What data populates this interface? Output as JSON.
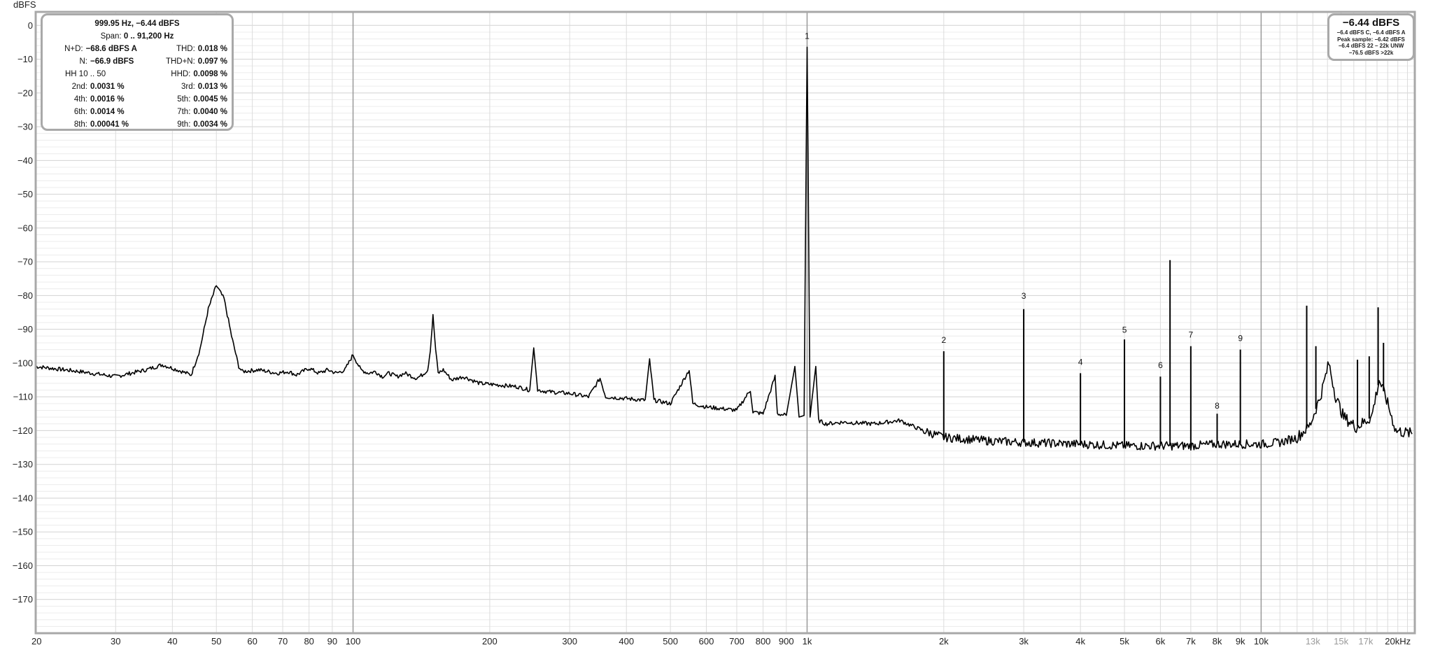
{
  "stats": {
    "header": "999.95 Hz, −6.44 dBFS",
    "span_label": "Span:",
    "span_value": "0 .. 91,200 Hz",
    "rows": [
      {
        "l1": "N+D:",
        "v1": "−68.6 dBFS A",
        "l2": "THD:",
        "v2": "0.018 %"
      },
      {
        "l1": "N:",
        "v1": "−66.9 dBFS",
        "l2": "THD+N:",
        "v2": "0.097 %"
      },
      {
        "l1": "HH 10 .. 50",
        "v1": "",
        "l2": "HHD:",
        "v2": "0.0098 %"
      },
      {
        "l1": "2nd:",
        "v1": "0.0031 %",
        "l2": "3rd:",
        "v2": "0.013 %"
      },
      {
        "l1": "4th:",
        "v1": "0.0016 %",
        "l2": "5th:",
        "v2": "0.0045 %"
      },
      {
        "l1": "6th:",
        "v1": "0.0014 %",
        "l2": "7th:",
        "v2": "0.0040 %"
      },
      {
        "l1": "8th:",
        "v1": "0.00041 %",
        "l2": "9th:",
        "v2": "0.0034 %"
      }
    ]
  },
  "level": {
    "main": "−6.44 dBFS",
    "lines": [
      "−6.4 dBFS C, −6.4 dBFS A",
      "Peak sample: −6.42 dBFS",
      "−6.4 dBFS 22 – 22k UNW",
      "−76.5 dBFS >22k"
    ]
  },
  "colors": {
    "trace": "#000000",
    "grid_minor": "#dddddd",
    "grid_decade": "#9a9a9a",
    "frame": "#a8a8a8"
  },
  "chart_data": {
    "type": "line",
    "ylabel": "dBFS",
    "xscale": "log",
    "xlim": [
      20,
      21800
    ],
    "ylim": [
      -180,
      4
    ],
    "y_ticks": [
      0,
      -10,
      -20,
      -30,
      -40,
      -50,
      -60,
      -70,
      -80,
      -90,
      -100,
      -110,
      -120,
      -130,
      -140,
      -150,
      -160,
      -170
    ],
    "y_tick_labels": [
      "0",
      "−10",
      "−20",
      "−30",
      "−40",
      "−50",
      "−60",
      "−70",
      "−80",
      "−90",
      "−100",
      "−110",
      "−120",
      "−130",
      "−140",
      "−150",
      "−160",
      "−170"
    ],
    "x_ticks": [
      {
        "v": 20,
        "label": "20"
      },
      {
        "v": 30,
        "label": "30"
      },
      {
        "v": 40,
        "label": "40"
      },
      {
        "v": 50,
        "label": "50"
      },
      {
        "v": 60,
        "label": "60"
      },
      {
        "v": 70,
        "label": "70"
      },
      {
        "v": 80,
        "label": "80"
      },
      {
        "v": 90,
        "label": "90"
      },
      {
        "v": 100,
        "label": "100"
      },
      {
        "v": 200,
        "label": "200"
      },
      {
        "v": 300,
        "label": "300"
      },
      {
        "v": 400,
        "label": "400"
      },
      {
        "v": 500,
        "label": "500"
      },
      {
        "v": 600,
        "label": "600"
      },
      {
        "v": 700,
        "label": "700"
      },
      {
        "v": 800,
        "label": "800"
      },
      {
        "v": 900,
        "label": "900"
      },
      {
        "v": 1000,
        "label": "1k"
      },
      {
        "v": 2000,
        "label": "2k"
      },
      {
        "v": 3000,
        "label": "3k"
      },
      {
        "v": 4000,
        "label": "4k"
      },
      {
        "v": 5000,
        "label": "5k"
      },
      {
        "v": 6000,
        "label": "6k"
      },
      {
        "v": 7000,
        "label": "7k"
      },
      {
        "v": 8000,
        "label": "8k"
      },
      {
        "v": 9000,
        "label": "9k"
      },
      {
        "v": 10000,
        "label": "10k"
      },
      {
        "v": 13000,
        "label": "13k",
        "dim": true
      },
      {
        "v": 15000,
        "label": "15k",
        "dim": true
      },
      {
        "v": 17000,
        "label": "17k",
        "dim": true
      },
      {
        "v": 20000,
        "label": "20kHz"
      }
    ],
    "series": [
      {
        "points": [
          [
            20,
            -101
          ],
          [
            25,
            -102.5
          ],
          [
            30,
            -104
          ],
          [
            35,
            -102
          ],
          [
            38,
            -100.5
          ],
          [
            41,
            -102
          ],
          [
            44,
            -103.5
          ],
          [
            46,
            -96
          ],
          [
            48,
            -84
          ],
          [
            50,
            -77
          ],
          [
            52,
            -81
          ],
          [
            54,
            -92
          ],
          [
            56,
            -101
          ],
          [
            57,
            -102.5
          ],
          [
            62,
            -102
          ],
          [
            68,
            -103
          ],
          [
            72,
            -102.5
          ],
          [
            75,
            -103.5
          ],
          [
            80,
            -101.5
          ],
          [
            84,
            -103
          ],
          [
            88,
            -102
          ],
          [
            92,
            -103
          ],
          [
            96,
            -102
          ],
          [
            100,
            -97.5
          ],
          [
            104,
            -102
          ],
          [
            108,
            -103
          ],
          [
            112,
            -102.5
          ],
          [
            116,
            -104
          ],
          [
            120,
            -103
          ],
          [
            125,
            -104
          ],
          [
            130,
            -103
          ],
          [
            138,
            -104.5
          ],
          [
            142,
            -103.5
          ],
          [
            146,
            -102
          ],
          [
            148,
            -96
          ],
          [
            150,
            -86
          ],
          [
            152,
            -96
          ],
          [
            154,
            -103
          ],
          [
            158,
            -102
          ],
          [
            165,
            -105
          ],
          [
            175,
            -104
          ],
          [
            190,
            -106
          ],
          [
            210,
            -106.5
          ],
          [
            230,
            -107
          ],
          [
            245,
            -108
          ],
          [
            250,
            -95.5
          ],
          [
            255,
            -108
          ],
          [
            270,
            -108.5
          ],
          [
            300,
            -109
          ],
          [
            330,
            -110
          ],
          [
            350,
            -104.5
          ],
          [
            360,
            -110
          ],
          [
            400,
            -110.5
          ],
          [
            440,
            -111
          ],
          [
            450,
            -99
          ],
          [
            460,
            -111
          ],
          [
            500,
            -112
          ],
          [
            550,
            -102
          ],
          [
            560,
            -112
          ],
          [
            600,
            -113
          ],
          [
            650,
            -113.5
          ],
          [
            700,
            -114
          ],
          [
            750,
            -108
          ],
          [
            760,
            -114.5
          ],
          [
            800,
            -115
          ],
          [
            850,
            -104
          ],
          [
            860,
            -115
          ],
          [
            900,
            -115.5
          ],
          [
            940,
            -101
          ],
          [
            960,
            -116
          ],
          [
            985,
            -115.5
          ],
          [
            995,
            -40
          ],
          [
            1000,
            -6.44
          ],
          [
            1005,
            -40
          ],
          [
            1015,
            -116
          ],
          [
            1045,
            -101
          ],
          [
            1060,
            -117
          ],
          [
            1100,
            -118
          ],
          [
            1200,
            -117.5
          ],
          [
            1400,
            -118
          ],
          [
            1600,
            -117
          ],
          [
            1800,
            -120
          ],
          [
            2000,
            -122
          ],
          [
            2500,
            -123
          ],
          [
            3000,
            -123.5
          ],
          [
            4000,
            -124
          ],
          [
            5000,
            -124.5
          ],
          [
            6000,
            -124.5
          ],
          [
            7000,
            -124.5
          ],
          [
            8000,
            -124
          ],
          [
            9000,
            -124
          ],
          [
            10000,
            -124
          ],
          [
            11000,
            -123.5
          ],
          [
            12000,
            -122
          ],
          [
            12800,
            -118.5
          ],
          [
            13500,
            -110
          ],
          [
            14100,
            -100
          ],
          [
            14600,
            -110
          ],
          [
            15200,
            -116
          ],
          [
            16200,
            -119
          ],
          [
            17500,
            -116
          ],
          [
            18200,
            -105
          ],
          [
            18800,
            -110
          ],
          [
            19800,
            -120
          ],
          [
            21500,
            -121
          ]
        ],
        "spikes": [
          {
            "f": 2000,
            "db": -96.5
          },
          {
            "f": 3000,
            "db": -84
          },
          {
            "f": 4000,
            "db": -103
          },
          {
            "f": 5000,
            "db": -93
          },
          {
            "f": 6000,
            "db": -104
          },
          {
            "f": 6300,
            "db": -69.5
          },
          {
            "f": 7000,
            "db": -95
          },
          {
            "f": 8000,
            "db": -115
          },
          {
            "f": 9000,
            "db": -96
          },
          {
            "f": 12600,
            "db": -83
          },
          {
            "f": 13200,
            "db": -95
          },
          {
            "f": 16300,
            "db": -99
          },
          {
            "f": 17300,
            "db": -98
          },
          {
            "f": 18100,
            "db": -83.5
          },
          {
            "f": 18600,
            "db": -94
          }
        ]
      }
    ],
    "harmonic_labels": [
      {
        "label": "1",
        "f": 1000,
        "db": -4
      },
      {
        "label": "2",
        "f": 2000,
        "db": -94
      },
      {
        "label": "3",
        "f": 3000,
        "db": -81
      },
      {
        "label": "4",
        "f": 4000,
        "db": -100.5
      },
      {
        "label": "5",
        "f": 5000,
        "db": -91
      },
      {
        "label": "6",
        "f": 6000,
        "db": -101.5
      },
      {
        "label": "7",
        "f": 7000,
        "db": -92.5
      },
      {
        "label": "8",
        "f": 8000,
        "db": -113.5
      },
      {
        "label": "9",
        "f": 9000,
        "db": -93.5
      }
    ]
  }
}
